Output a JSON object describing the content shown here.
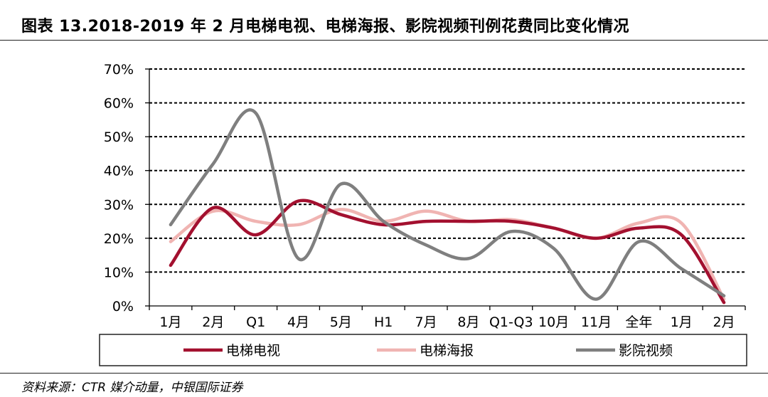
{
  "title": "图表 13.2018-2019 年 2 月电梯电视、电梯海报、影院视频刊例花费同比变化情况",
  "source": "资料来源：CTR 媒介动量，中银国际证券",
  "chart_data": {
    "type": "line",
    "title": "",
    "xlabel": "",
    "ylabel": "",
    "categories": [
      "1月",
      "2月",
      "Q1",
      "4月",
      "5月",
      "H1",
      "7月",
      "8月",
      "Q1-Q3",
      "10月",
      "11月",
      "全年",
      "1月",
      "2月"
    ],
    "ylim": [
      0,
      70
    ],
    "yticks": [
      0,
      10,
      20,
      30,
      40,
      50,
      60,
      70
    ],
    "ytick_labels": [
      "0%",
      "10%",
      "20%",
      "30%",
      "40%",
      "50%",
      "60%",
      "70%"
    ],
    "grid": true,
    "legend_position": "bottom",
    "series": [
      {
        "name": "电梯电视",
        "color": "#a3102f",
        "values": [
          12,
          29,
          21,
          31,
          27,
          24,
          25,
          25,
          25,
          23,
          20,
          23,
          21,
          1
        ]
      },
      {
        "name": "电梯海报",
        "color": "#f0b4b2",
        "values": [
          19,
          28,
          25,
          24,
          28.5,
          25,
          28,
          25,
          25.5,
          23,
          20,
          24.5,
          24.5,
          2
        ]
      },
      {
        "name": "影院视频",
        "color": "#7f7f7f",
        "values": [
          24,
          42,
          57,
          14,
          36,
          25,
          18,
          14,
          22,
          17,
          2,
          19,
          11,
          3
        ]
      }
    ]
  }
}
